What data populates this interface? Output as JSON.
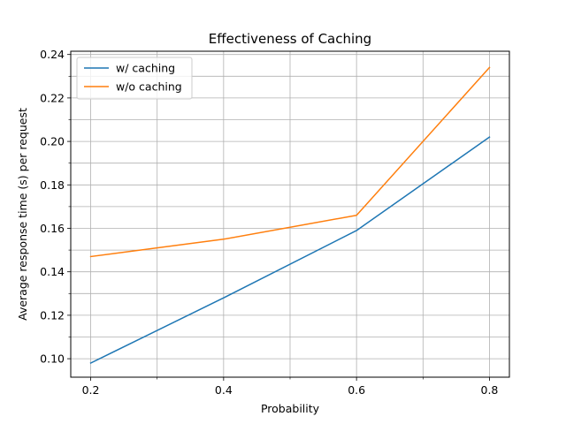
{
  "chart_data": {
    "type": "line",
    "title": "Effectiveness of Caching",
    "xlabel": "Probability",
    "ylabel": "Average response time (s) per request",
    "x": [
      0.2,
      0.4,
      0.6,
      0.8
    ],
    "xlim": [
      0.17,
      0.83
    ],
    "ylim": [
      0.0915,
      0.2415
    ],
    "xticks": [
      0.2,
      0.4,
      0.6,
      0.8
    ],
    "xtick_labels": [
      "0.2",
      "0.4",
      "0.6",
      "0.8"
    ],
    "xgrid": [
      0.3,
      0.5,
      0.7
    ],
    "yticks": [
      0.1,
      0.12,
      0.14,
      0.16,
      0.18,
      0.2,
      0.22,
      0.24
    ],
    "ytick_labels": [
      "0.10",
      "0.12",
      "0.14",
      "0.16",
      "0.18",
      "0.20",
      "0.22",
      "0.24"
    ],
    "ygrid": [
      0.11,
      0.13,
      0.15,
      0.17,
      0.19,
      0.21,
      0.23
    ],
    "grid": true,
    "legend_position": "top-left",
    "series": [
      {
        "name": "w/ caching",
        "values": [
          0.098,
          0.128,
          0.159,
          0.202
        ],
        "color": "#1f77b4"
      },
      {
        "name": "w/o caching",
        "values": [
          0.147,
          0.155,
          0.166,
          0.234
        ],
        "color": "#ff7f0e"
      }
    ]
  }
}
